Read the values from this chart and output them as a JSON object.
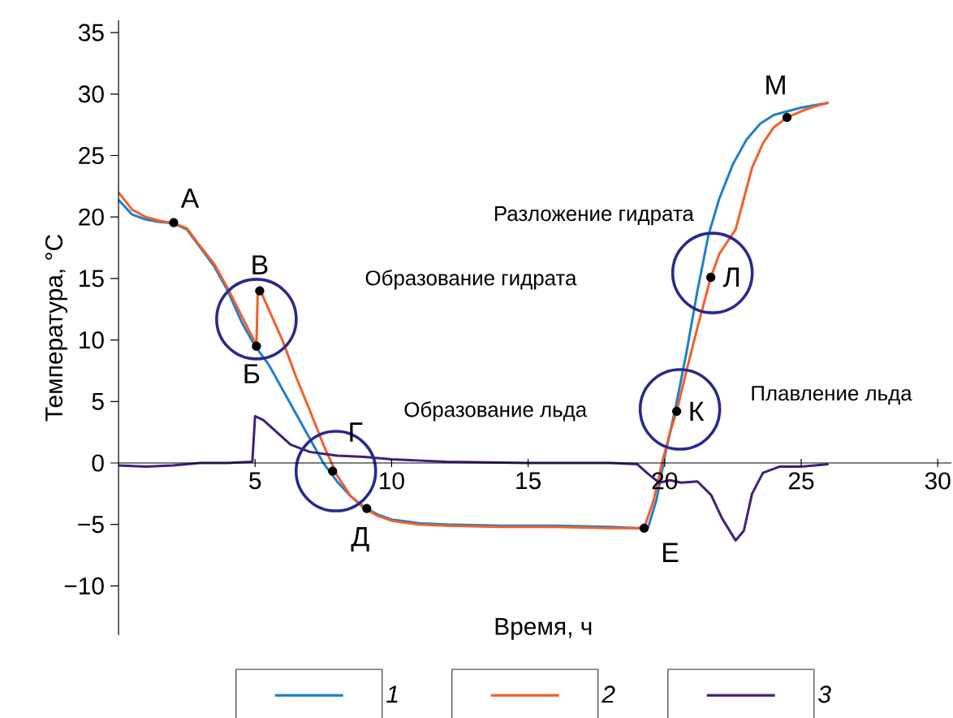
{
  "chart_data": {
    "type": "line",
    "xlabel": "Время, ч",
    "ylabel": "Температура, °C",
    "xlim": [
      0,
      30.5
    ],
    "ylim": [
      -14,
      36
    ],
    "xticks": [
      5,
      10,
      15,
      20,
      25,
      30
    ],
    "yticks": [
      {
        "value": -10,
        "label": "−10"
      },
      {
        "value": -5,
        "label": "−5"
      },
      0,
      5,
      10,
      15,
      20,
      25,
      30,
      35
    ],
    "legend": "bottom",
    "marker": "none",
    "line_style": "solid",
    "series": [
      {
        "name": "1",
        "color": "#1f7fc9",
        "x": [
          0,
          0.5,
          1,
          1.5,
          2,
          2.5,
          3,
          3.5,
          4,
          4.5,
          5,
          5.5,
          6,
          6.5,
          7,
          7.5,
          8,
          8.5,
          9,
          9.5,
          10,
          11,
          12,
          14,
          16,
          18,
          19,
          19.4,
          19.7,
          20,
          20.4,
          20.8,
          21.2,
          21.6,
          22,
          22.5,
          23,
          23.5,
          24,
          24.5,
          25,
          25.5,
          26
        ],
        "values": [
          21.4,
          20.2,
          19.8,
          19.6,
          19.5,
          19,
          17.5,
          16,
          14,
          11.5,
          9.5,
          8,
          6,
          4,
          2,
          0,
          -1.5,
          -2.7,
          -3.6,
          -4.2,
          -4.6,
          -4.9,
          -5,
          -5.1,
          -5.1,
          -5.2,
          -5.3,
          -5.2,
          -3,
          0.5,
          4.5,
          9,
          14,
          18.5,
          21.5,
          24.3,
          26.3,
          27.6,
          28.3,
          28.6,
          28.9,
          29.1,
          29.3
        ]
      },
      {
        "name": "2",
        "color": "#f0602a",
        "x": [
          0,
          0.5,
          1,
          1.5,
          2,
          2.5,
          3,
          3.5,
          4,
          4.5,
          5.05,
          5.1,
          5.2,
          5.6,
          6,
          6.5,
          7,
          7.5,
          8,
          8.5,
          9,
          9.5,
          10,
          11,
          12,
          14,
          16,
          18,
          19.25,
          19.6,
          19.9,
          20.2,
          20.44,
          20.8,
          21.2,
          21.69,
          22,
          22.3,
          22.6,
          22.9,
          23.2,
          23.6,
          24,
          24.48,
          25,
          25.5,
          26
        ],
        "values": [
          22,
          20.6,
          20,
          19.7,
          19.5,
          19.1,
          17.6,
          16.2,
          14.2,
          12,
          9.6,
          14,
          14,
          12,
          10,
          7,
          4.3,
          1.5,
          -1,
          -2.7,
          -3.7,
          -4.3,
          -4.7,
          -5,
          -5.1,
          -5.2,
          -5.2,
          -5.3,
          -5.3,
          -3,
          0,
          2.5,
          4.2,
          7.5,
          11,
          15.1,
          17,
          18,
          19,
          21.5,
          24,
          26,
          27.3,
          28.1,
          28.6,
          29,
          29.3
        ]
      },
      {
        "name": "3",
        "color": "#3f1f7a",
        "x": [
          0,
          1,
          2,
          3,
          4,
          4.9,
          5,
          5.3,
          5.8,
          6.3,
          7,
          8,
          9,
          10,
          12,
          15,
          18,
          19,
          19.4,
          19.8,
          20.2,
          20.6,
          21.2,
          21.7,
          22.1,
          22.6,
          22.9,
          23.2,
          23.6,
          24.2,
          25,
          26
        ],
        "values": [
          -0.2,
          -0.3,
          -0.2,
          0,
          0,
          0.1,
          3.8,
          3.5,
          2.5,
          1.5,
          0.9,
          0.6,
          0.5,
          0.3,
          0.1,
          0,
          0,
          -0.1,
          -0.9,
          -1.6,
          -1.4,
          -1.6,
          -1.5,
          -2.6,
          -4.5,
          -6.3,
          -5.5,
          -2.5,
          -0.8,
          -0.3,
          -0.3,
          -0.1
        ]
      }
    ],
    "annotations": [
      {
        "text": "А",
        "x": 2.02,
        "y": 19.55
      },
      {
        "text": "Б",
        "x": 5.05,
        "y": 9.5
      },
      {
        "text": "В",
        "x": 5.17,
        "y": 14.0
      },
      {
        "text": "Г",
        "x": 7.84,
        "y": -0.66
      },
      {
        "text": "Д",
        "x": 9.09,
        "y": -3.7
      },
      {
        "text": "Е",
        "x": 19.25,
        "y": -5.3
      },
      {
        "text": "К",
        "x": 20.44,
        "y": 4.2
      },
      {
        "text": "Л",
        "x": 21.69,
        "y": 15.1
      },
      {
        "text": "М",
        "x": 24.48,
        "y": 28.1
      },
      "Разложение гидрата",
      "Образование гидрата",
      "Образование льда",
      "Плавление льда"
    ]
  }
}
